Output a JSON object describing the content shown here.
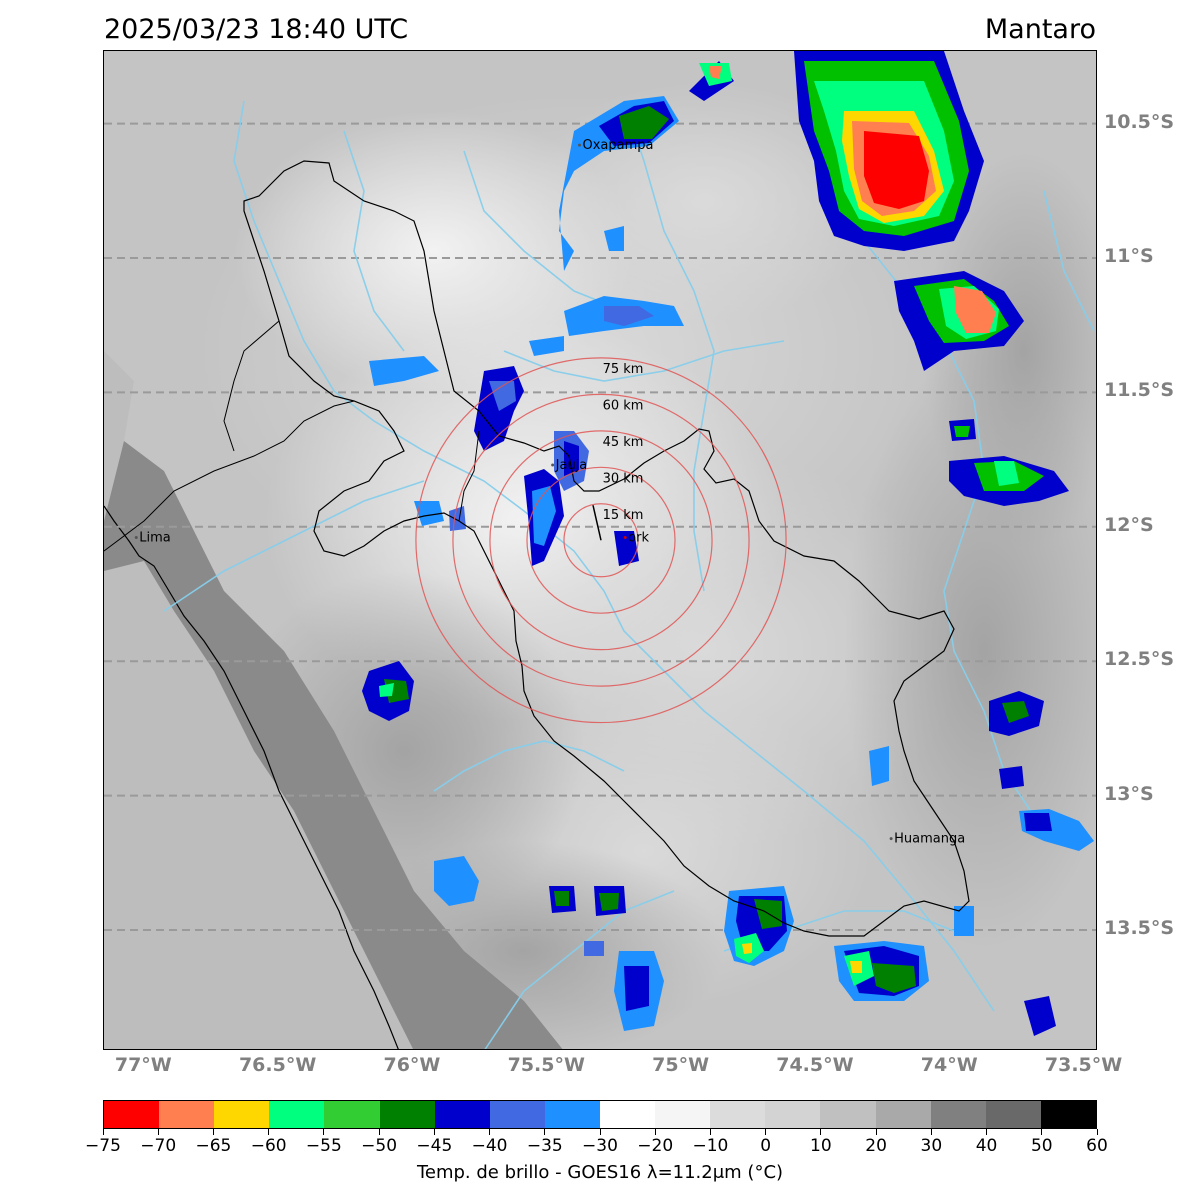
{
  "header": {
    "timestamp": "2025/03/23 18:40 UTC",
    "region": "Mantaro"
  },
  "map": {
    "lat_labels": [
      {
        "value": -10.5,
        "text": "10.5°S"
      },
      {
        "value": -11.0,
        "text": "11°S"
      },
      {
        "value": -11.5,
        "text": "11.5°S"
      },
      {
        "value": -12.0,
        "text": "12°S"
      },
      {
        "value": -12.5,
        "text": "12.5°S"
      },
      {
        "value": -13.0,
        "text": "13°S"
      },
      {
        "value": -13.5,
        "text": "13.5°S"
      }
    ],
    "lon_labels": [
      {
        "value": -77.0,
        "text": "77°W"
      },
      {
        "value": -76.5,
        "text": "76.5°W"
      },
      {
        "value": -76.0,
        "text": "76°W"
      },
      {
        "value": -75.5,
        "text": "75.5°W"
      },
      {
        "value": -75.0,
        "text": "75°W"
      },
      {
        "value": -74.5,
        "text": "74.5°W"
      },
      {
        "value": -74.0,
        "text": "74°W"
      },
      {
        "value": -73.5,
        "text": "73.5°W"
      }
    ],
    "extent": {
      "lon_min": -77.15,
      "lon_max": -73.45,
      "lat_min": -13.95,
      "lat_max": -10.23
    },
    "cities": [
      {
        "name": "Oxapampa",
        "lon": -75.38,
        "lat": -10.58
      },
      {
        "name": "Jauja",
        "lon": -75.48,
        "lat": -11.77
      },
      {
        "name": "Huayao Observatory",
        "label": "ork",
        "lon": -75.21,
        "lat": -12.04
      },
      {
        "name": "Lima",
        "label": "Lima",
        "lon": -77.03,
        "lat": -12.04
      },
      {
        "name": "Huamanga",
        "lon": -74.22,
        "lat": -13.16
      }
    ],
    "radar_center": {
      "lon": -75.3,
      "lat": -12.05
    },
    "range_rings": [
      {
        "km": 15,
        "text": "15 km"
      },
      {
        "km": 30,
        "text": "30 km"
      },
      {
        "km": 45,
        "text": "45 km"
      },
      {
        "km": 60,
        "text": "60 km"
      },
      {
        "km": 75,
        "text": "75 km"
      }
    ]
  },
  "colorbar": {
    "title": "Temp. de brillo - GOES16 λ=11.2μm (°C)",
    "colors": [
      "#ff0000",
      "#ff7f50",
      "#ffd700",
      "#00ff7f",
      "#32cd32",
      "#008000",
      "#0000cd",
      "#4169e1",
      "#1e90ff",
      "#ffffff",
      "#f5f5f5",
      "#dcdcdc",
      "#d3d3d3",
      "#c0c0c0",
      "#a9a9a9",
      "#808080",
      "#696969",
      "#000000"
    ],
    "tick_labels": [
      "−75",
      "−70",
      "−65",
      "−60",
      "−55",
      "−50",
      "−45",
      "−40",
      "−35",
      "−30",
      "−20",
      "−10",
      "0",
      "10",
      "20",
      "30",
      "40",
      "50",
      "60"
    ]
  }
}
